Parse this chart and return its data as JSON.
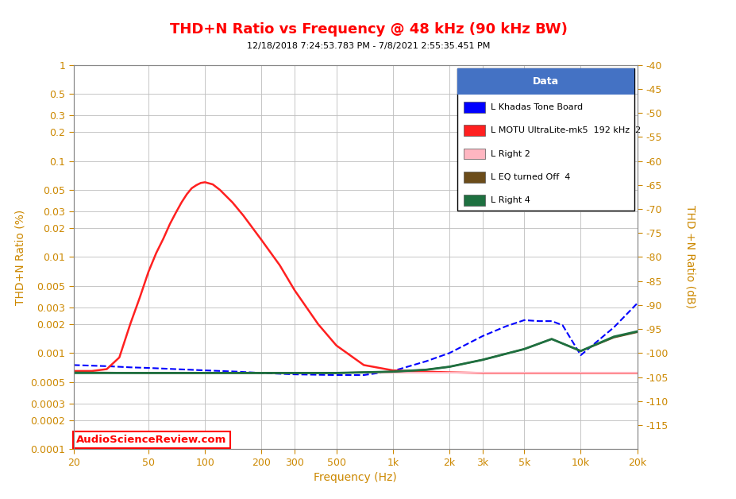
{
  "title": "THD+N Ratio vs Frequency @ 48 kHz (90 kHz BW)",
  "subtitle": "12/18/2018 7:24:53.783 PM - 7/8/2021 2:55:35.451 PM",
  "xlabel": "Frequency (Hz)",
  "ylabel_left": "THD+N Ratio (%)",
  "ylabel_right": "THD +N Ratio (dB)",
  "title_color": "#FF0000",
  "subtitle_color": "#000000",
  "bg_color": "#FFFFFF",
  "plot_bg_color": "#FFFFFF",
  "grid_color": "#C0C0C0",
  "tick_color": "#CC8800",
  "right_axis_color": "#CC8800",
  "watermark": "AudioScienceReview.com",
  "watermark_color": "#FF0000",
  "legend_title": "Data",
  "legend_title_bg": "#4472C4",
  "legend_title_color": "#FFFFFF",
  "legend_entries": [
    {
      "label": "L Khadas Tone Board",
      "color": "#0000FF",
      "linestyle": "--"
    },
    {
      "label": "L MOTU UltraLite-mk5  192 kHz  2",
      "color": "#FF2020",
      "linestyle": "-"
    },
    {
      "label": "L Right 2",
      "color": "#FFB6C1",
      "linestyle": "-"
    },
    {
      "label": "L EQ turned Off  4",
      "color": "#6B4C1A",
      "linestyle": "-"
    },
    {
      "label": "L Right 4",
      "color": "#1E7040",
      "linestyle": "-"
    }
  ],
  "xmin": 20,
  "xmax": 20000,
  "ymin": 0.0001,
  "ymax": 1.0,
  "xticks": [
    20,
    50,
    100,
    200,
    300,
    500,
    1000,
    2000,
    3000,
    5000,
    10000,
    20000
  ],
  "xtick_labels": [
    "20",
    "50",
    "100",
    "200",
    "300",
    "500",
    "1k",
    "2k",
    "3k",
    "5k",
    "10k",
    "20k"
  ],
  "yticks_left": [
    0.0001,
    0.0002,
    0.0003,
    0.0005,
    0.001,
    0.002,
    0.003,
    0.005,
    0.01,
    0.02,
    0.03,
    0.05,
    0.1,
    0.2,
    0.3,
    0.5,
    1.0
  ],
  "ytick_labels_left": [
    "0.0001",
    "0.0002",
    "0.0003",
    "0.0005",
    "0.001",
    "0.002",
    "0.003",
    "0.005",
    "0.01",
    "0.02",
    "0.03",
    "0.05",
    "0.1",
    "0.2",
    "0.3",
    "0.5",
    "1"
  ],
  "yticks_right_db": [
    -40,
    -45,
    -50,
    -55,
    -60,
    -65,
    -70,
    -75,
    -80,
    -85,
    -90,
    -95,
    -100,
    -105,
    -110,
    -115
  ],
  "series": [
    {
      "name": "Khadas Tone Board",
      "color": "#0000FF",
      "linestyle": "--",
      "linewidth": 1.5,
      "x": [
        20,
        30,
        40,
        50,
        70,
        100,
        150,
        200,
        300,
        500,
        700,
        1000,
        1500,
        2000,
        3000,
        4000,
        5000,
        6000,
        7000,
        8000,
        10000,
        15000,
        20000
      ],
      "y": [
        0.00075,
        0.00073,
        0.00071,
        0.0007,
        0.00068,
        0.00066,
        0.00064,
        0.00062,
        0.0006,
        0.00059,
        0.00059,
        0.00065,
        0.00082,
        0.001,
        0.0015,
        0.0019,
        0.0022,
        0.00215,
        0.00215,
        0.00195,
        0.00095,
        0.00185,
        0.0033
      ]
    },
    {
      "name": "MOTU UltraLite-mk5 L",
      "color": "#FF2020",
      "linestyle": "-",
      "linewidth": 1.8,
      "x": [
        20,
        25,
        30,
        35,
        40,
        45,
        50,
        55,
        60,
        65,
        70,
        75,
        80,
        85,
        90,
        95,
        100,
        110,
        120,
        140,
        160,
        200,
        250,
        300,
        400,
        500,
        700,
        1000,
        1500,
        2000,
        3000,
        5000,
        10000,
        20000
      ],
      "y": [
        0.00065,
        0.00065,
        0.00068,
        0.0009,
        0.002,
        0.0038,
        0.007,
        0.011,
        0.0155,
        0.022,
        0.029,
        0.037,
        0.045,
        0.052,
        0.056,
        0.059,
        0.06,
        0.057,
        0.05,
        0.037,
        0.027,
        0.015,
        0.0082,
        0.0045,
        0.002,
        0.0012,
        0.00075,
        0.00066,
        0.00064,
        0.00063,
        0.00062,
        0.00062,
        0.00062,
        0.00062
      ]
    },
    {
      "name": "MOTU Right 2",
      "color": "#FFB6C1",
      "linestyle": "-",
      "linewidth": 1.5,
      "x": [
        20,
        50,
        100,
        200,
        500,
        1000,
        2000,
        5000,
        10000,
        20000
      ],
      "y": [
        0.00063,
        0.00063,
        0.00063,
        0.00063,
        0.00063,
        0.00063,
        0.00063,
        0.00063,
        0.00063,
        0.00063
      ]
    },
    {
      "name": "EQ turned Off 4",
      "color": "#6B4C1A",
      "linestyle": "-",
      "linewidth": 1.5,
      "x": [
        20,
        50,
        100,
        200,
        300,
        500,
        700,
        1000,
        1500,
        2000,
        3000,
        5000,
        7000,
        10000,
        15000,
        20000
      ],
      "y": [
        0.00063,
        0.00062,
        0.00062,
        0.00062,
        0.00062,
        0.00062,
        0.00063,
        0.00064,
        0.00067,
        0.00072,
        0.00085,
        0.0011,
        0.0014,
        0.00105,
        0.00145,
        0.00165
      ]
    },
    {
      "name": "Right 4",
      "color": "#1E7040",
      "linestyle": "-",
      "linewidth": 2.0,
      "x": [
        20,
        50,
        100,
        200,
        300,
        500,
        700,
        1000,
        1500,
        2000,
        3000,
        5000,
        7000,
        10000,
        15000,
        20000
      ],
      "y": [
        0.00062,
        0.00062,
        0.00062,
        0.00062,
        0.00062,
        0.00062,
        0.00063,
        0.00064,
        0.00067,
        0.00072,
        0.00085,
        0.0011,
        0.0014,
        0.00105,
        0.00148,
        0.00168
      ]
    }
  ]
}
